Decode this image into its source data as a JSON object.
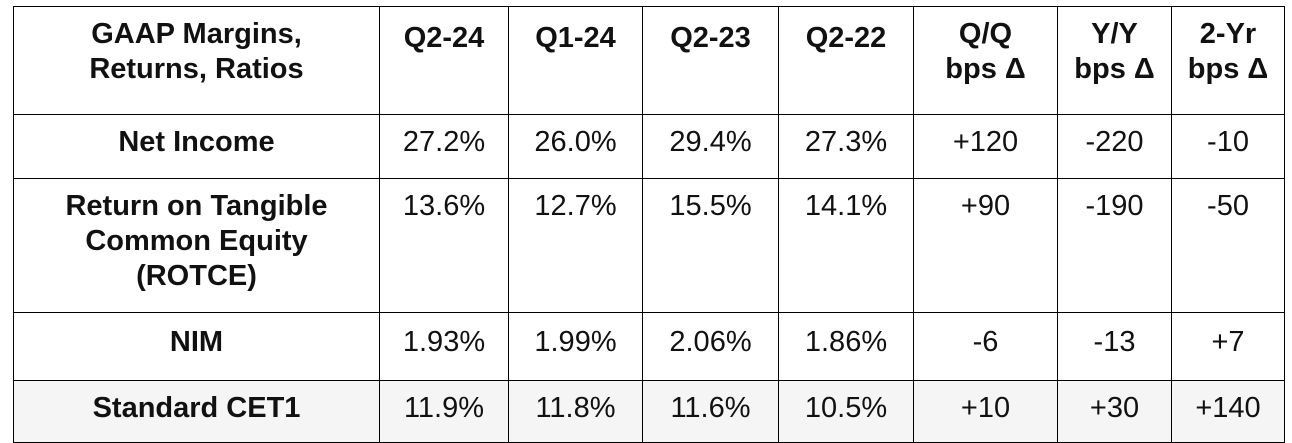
{
  "table": {
    "header": {
      "metric_lines": [
        "GAAP Margins,",
        "Returns, Ratios"
      ],
      "columns": [
        {
          "lines": [
            "Q2-24"
          ]
        },
        {
          "lines": [
            "Q1-24"
          ]
        },
        {
          "lines": [
            "Q2-23"
          ]
        },
        {
          "lines": [
            "Q2-22"
          ]
        },
        {
          "lines": [
            "Q/Q",
            "bps Δ"
          ]
        },
        {
          "lines": [
            "Y/Y",
            "bps Δ"
          ]
        },
        {
          "lines": [
            "2-Yr",
            "bps Δ"
          ]
        }
      ]
    },
    "rows": [
      {
        "label_lines": [
          "Net Income"
        ],
        "values": [
          "27.2%",
          "26.0%",
          "29.4%",
          "27.3%",
          "+120",
          "-220",
          "-10"
        ]
      },
      {
        "label_lines": [
          "Return on Tangible",
          "Common Equity",
          "(ROTCE)"
        ],
        "values": [
          "13.6%",
          "12.7%",
          "15.5%",
          "14.1%",
          "+90",
          "-190",
          "-50"
        ]
      },
      {
        "label_lines": [
          "NIM"
        ],
        "values": [
          "1.93%",
          "1.99%",
          "2.06%",
          "1.86%",
          "-6",
          "-13",
          "+7"
        ]
      },
      {
        "label_lines": [
          "Standard CET1"
        ],
        "values": [
          "11.9%",
          "11.8%",
          "11.6%",
          "10.5%",
          "+10",
          "+30",
          "+140"
        ]
      }
    ]
  }
}
